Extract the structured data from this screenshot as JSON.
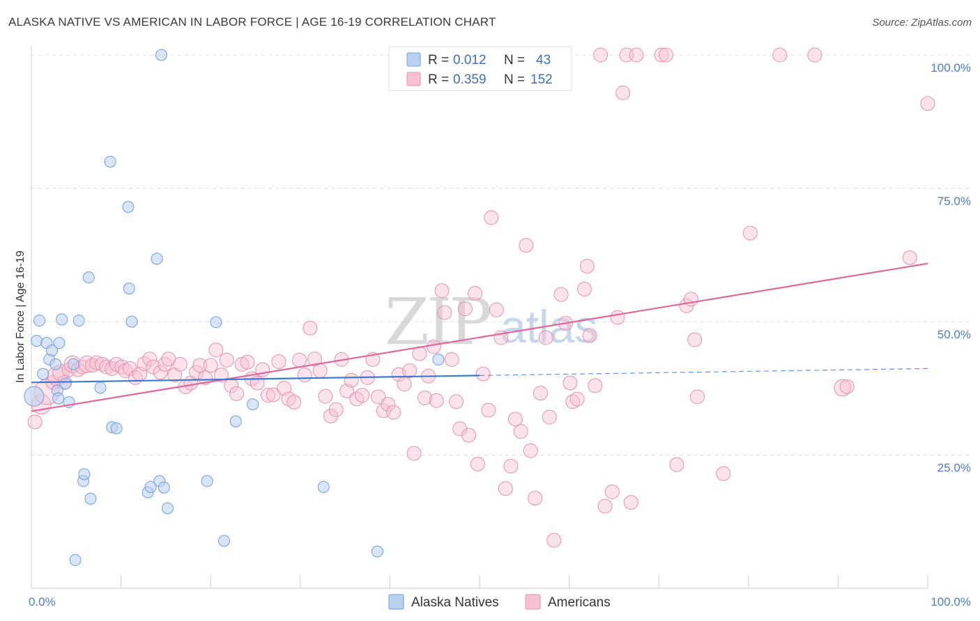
{
  "title": "ALASKA NATIVE VS AMERICAN IN LABOR FORCE | AGE 16-19 CORRELATION CHART",
  "source": "Source: ZipAtlas.com",
  "watermark": {
    "zip": "ZIP",
    "atlas": "atlas"
  },
  "colors": {
    "blue_fill": "#b9d0f0",
    "blue_stroke": "#6f9ee0",
    "blue_line": "#3a78d4",
    "pink_fill": "#f7c1d2",
    "pink_stroke": "#ea8fae",
    "pink_line": "#e0679a",
    "grid": "#dddddd",
    "axis_label": "#4a7ec9"
  },
  "legend": {
    "rows": [
      {
        "r_label": "R = ",
        "r_value": "0.012",
        "n_label": "N = ",
        "n_value": "43"
      },
      {
        "r_label": "R = ",
        "r_value": "0.359",
        "n_label": "N = ",
        "n_value": "152"
      }
    ]
  },
  "bottom_legend": [
    "Alaska Natives",
    "Americans"
  ],
  "chart_data": {
    "type": "scatter",
    "title": "ALASKA NATIVE VS AMERICAN IN LABOR FORCE | AGE 16-19 CORRELATION CHART",
    "xlabel": "",
    "ylabel": "In Labor Force | Age 16-19",
    "xlim": [
      0,
      100
    ],
    "ylim": [
      0,
      100
    ],
    "x_tick_labels": [
      "0.0%",
      "100.0%"
    ],
    "y_ticks": [
      25,
      50,
      75,
      100
    ],
    "y_tick_labels": [
      "25.0%",
      "50.0%",
      "75.0%",
      "100.0%"
    ],
    "grid": true,
    "legend_position": "top-center",
    "series": [
      {
        "name": "Alaska Natives",
        "r": 0.012,
        "n": 43,
        "trend": {
          "x0": 0,
          "y0": 38.6,
          "x1": 50,
          "y1": 39.9,
          "dashed_to_x": 100,
          "dashed_to_y": 41.2
        },
        "points": [
          [
            0.3,
            36.0,
            14
          ],
          [
            0.6,
            46.4,
            8
          ],
          [
            0.9,
            50.2,
            8
          ],
          [
            1.3,
            40.2,
            8
          ],
          [
            1.7,
            46.0,
            8
          ],
          [
            2.0,
            42.9,
            8
          ],
          [
            2.3,
            44.6,
            8
          ],
          [
            2.7,
            42.0,
            8
          ],
          [
            2.9,
            37.1,
            8
          ],
          [
            3.0,
            35.6,
            8
          ],
          [
            3.1,
            46.0,
            8
          ],
          [
            3.4,
            50.4,
            8
          ],
          [
            3.8,
            38.4,
            8
          ],
          [
            4.2,
            34.9,
            8
          ],
          [
            4.7,
            42.0,
            8
          ],
          [
            4.9,
            5.3,
            8
          ],
          [
            5.3,
            50.2,
            8
          ],
          [
            5.8,
            20.1,
            8
          ],
          [
            5.9,
            21.4,
            8
          ],
          [
            6.4,
            58.3,
            8
          ],
          [
            6.6,
            16.8,
            8
          ],
          [
            7.7,
            37.6,
            8
          ],
          [
            8.8,
            80.0,
            8
          ],
          [
            9.0,
            30.2,
            8
          ],
          [
            9.5,
            30.0,
            8
          ],
          [
            10.8,
            71.5,
            8
          ],
          [
            10.9,
            56.2,
            8
          ],
          [
            11.2,
            50.0,
            8
          ],
          [
            13.0,
            18.0,
            8
          ],
          [
            13.3,
            19.0,
            8
          ],
          [
            14.0,
            61.8,
            8
          ],
          [
            14.3,
            20.1,
            8
          ],
          [
            14.5,
            100.0,
            8
          ],
          [
            14.8,
            18.9,
            8
          ],
          [
            15.2,
            15.0,
            8
          ],
          [
            19.6,
            20.1,
            8
          ],
          [
            20.6,
            49.9,
            8
          ],
          [
            21.5,
            8.9,
            8
          ],
          [
            22.8,
            31.3,
            8
          ],
          [
            24.7,
            34.5,
            8
          ],
          [
            32.6,
            19.0,
            8
          ],
          [
            38.6,
            6.9,
            8
          ],
          [
            45.4,
            42.9,
            8
          ]
        ]
      },
      {
        "name": "Americans",
        "r": 0.359,
        "n": 152,
        "trend": {
          "x0": 0,
          "y0": 33.2,
          "x1": 100,
          "y1": 60.9
        },
        "points": [
          [
            0.4,
            31.2,
            10
          ],
          [
            1.1,
            34.5,
            14
          ],
          [
            1.7,
            36.8,
            18
          ],
          [
            2.4,
            38.6,
            10
          ],
          [
            2.9,
            39.8,
            14
          ],
          [
            3.3,
            40.4,
            12
          ],
          [
            3.7,
            38.6,
            10
          ],
          [
            4.2,
            41.0,
            10
          ],
          [
            4.6,
            42.0,
            12
          ],
          [
            5.2,
            41.0,
            10
          ],
          [
            5.7,
            41.5,
            10
          ],
          [
            6.2,
            42.0,
            12
          ],
          [
            6.8,
            41.8,
            10
          ],
          [
            7.3,
            42.3,
            10
          ],
          [
            7.9,
            42.0,
            10
          ],
          [
            8.4,
            41.5,
            10
          ],
          [
            9.0,
            41.2,
            10
          ],
          [
            9.5,
            42.0,
            10
          ],
          [
            10.1,
            41.5,
            10
          ],
          [
            10.5,
            40.8,
            10
          ],
          [
            11.0,
            41.2,
            10
          ],
          [
            11.6,
            39.5,
            10
          ],
          [
            12.1,
            40.2,
            10
          ],
          [
            12.6,
            42.1,
            10
          ],
          [
            13.2,
            43.0,
            10
          ],
          [
            13.6,
            41.5,
            10
          ],
          [
            14.4,
            40.5,
            10
          ],
          [
            14.9,
            42.0,
            10
          ],
          [
            15.3,
            43.0,
            10
          ],
          [
            16.0,
            40.0,
            10
          ],
          [
            16.6,
            42.0,
            10
          ],
          [
            17.2,
            37.8,
            10
          ],
          [
            17.8,
            38.5,
            10
          ],
          [
            18.4,
            40.5,
            10
          ],
          [
            18.8,
            41.8,
            10
          ],
          [
            19.4,
            39.5,
            10
          ],
          [
            20.0,
            41.8,
            10
          ],
          [
            20.6,
            44.7,
            10
          ],
          [
            21.2,
            40.0,
            10
          ],
          [
            21.8,
            42.8,
            10
          ],
          [
            22.3,
            38.0,
            10
          ],
          [
            22.9,
            36.5,
            10
          ],
          [
            23.5,
            42.0,
            10
          ],
          [
            24.1,
            42.4,
            10
          ],
          [
            24.6,
            39.3,
            10
          ],
          [
            25.2,
            38.5,
            10
          ],
          [
            25.8,
            41.0,
            10
          ],
          [
            26.4,
            36.2,
            10
          ],
          [
            27.0,
            36.3,
            10
          ],
          [
            27.6,
            42.5,
            10
          ],
          [
            28.2,
            37.5,
            10
          ],
          [
            28.7,
            35.5,
            10
          ],
          [
            29.3,
            34.9,
            10
          ],
          [
            29.9,
            42.8,
            10
          ],
          [
            30.5,
            40.0,
            10
          ],
          [
            31.1,
            48.8,
            10
          ],
          [
            31.6,
            43.0,
            10
          ],
          [
            32.2,
            40.8,
            10
          ],
          [
            32.8,
            36.0,
            10
          ],
          [
            33.4,
            32.3,
            10
          ],
          [
            34.0,
            33.5,
            10
          ],
          [
            34.6,
            42.9,
            10
          ],
          [
            35.2,
            37.0,
            10
          ],
          [
            35.7,
            39.0,
            10
          ],
          [
            36.3,
            35.5,
            10
          ],
          [
            36.9,
            36.2,
            10
          ],
          [
            37.5,
            39.5,
            10
          ],
          [
            38.1,
            42.9,
            10
          ],
          [
            38.7,
            35.9,
            10
          ],
          [
            39.3,
            33.3,
            10
          ],
          [
            39.8,
            34.5,
            10
          ],
          [
            40.4,
            33.0,
            10
          ],
          [
            41.0,
            40.1,
            10
          ],
          [
            41.6,
            38.3,
            10
          ],
          [
            42.2,
            40.8,
            10
          ],
          [
            42.7,
            25.3,
            10
          ],
          [
            43.3,
            44.0,
            10
          ],
          [
            43.9,
            35.7,
            10
          ],
          [
            44.3,
            39.8,
            10
          ],
          [
            44.9,
            45.3,
            10
          ],
          [
            45.2,
            35.2,
            10
          ],
          [
            45.8,
            55.8,
            10
          ],
          [
            46.1,
            51.7,
            10
          ],
          [
            46.9,
            42.9,
            10
          ],
          [
            47.4,
            35.0,
            10
          ],
          [
            47.8,
            29.9,
            10
          ],
          [
            48.4,
            52.4,
            10
          ],
          [
            48.8,
            28.7,
            10
          ],
          [
            49.5,
            55.3,
            10
          ],
          [
            49.8,
            23.3,
            10
          ],
          [
            50.4,
            40.2,
            10
          ],
          [
            51.0,
            33.4,
            10
          ],
          [
            51.3,
            69.5,
            10
          ],
          [
            51.9,
            52.2,
            10
          ],
          [
            52.4,
            47.0,
            10
          ],
          [
            52.9,
            18.7,
            10
          ],
          [
            53.5,
            22.9,
            10
          ],
          [
            54.0,
            31.7,
            10
          ],
          [
            54.6,
            29.4,
            10
          ],
          [
            55.2,
            64.3,
            10
          ],
          [
            55.7,
            25.8,
            10
          ],
          [
            56.2,
            16.9,
            10
          ],
          [
            56.8,
            36.6,
            10
          ],
          [
            57.4,
            47.0,
            10
          ],
          [
            57.8,
            32.1,
            10
          ],
          [
            58.3,
            9.0,
            10
          ],
          [
            59.1,
            55.1,
            10
          ],
          [
            59.6,
            49.7,
            10
          ],
          [
            60.1,
            38.5,
            10
          ],
          [
            60.4,
            35.0,
            10
          ],
          [
            60.9,
            35.5,
            10
          ],
          [
            61.7,
            56.1,
            10
          ],
          [
            62.0,
            60.4,
            10
          ],
          [
            62.3,
            47.4,
            10
          ],
          [
            62.9,
            38.0,
            10
          ],
          [
            63.5,
            100.0,
            10
          ],
          [
            64.0,
            15.4,
            10
          ],
          [
            64.8,
            18.1,
            10
          ],
          [
            65.4,
            50.8,
            10
          ],
          [
            66.0,
            92.9,
            10
          ],
          [
            66.4,
            100.0,
            10
          ],
          [
            66.9,
            16.1,
            10
          ],
          [
            67.5,
            100.0,
            10
          ],
          [
            70.3,
            100.0,
            10
          ],
          [
            70.8,
            100.0,
            10
          ],
          [
            72.0,
            23.2,
            10
          ],
          [
            73.1,
            53.0,
            10
          ],
          [
            73.6,
            54.2,
            10
          ],
          [
            74.0,
            46.6,
            10
          ],
          [
            74.3,
            35.9,
            10
          ],
          [
            77.2,
            21.5,
            10
          ],
          [
            80.2,
            66.6,
            10
          ],
          [
            83.5,
            100.0,
            10
          ],
          [
            87.4,
            100.0,
            10
          ],
          [
            90.5,
            37.6,
            12
          ],
          [
            91.0,
            37.8,
            10
          ],
          [
            98.0,
            62.0,
            10
          ],
          [
            100.0,
            90.9,
            10
          ]
        ]
      }
    ]
  }
}
